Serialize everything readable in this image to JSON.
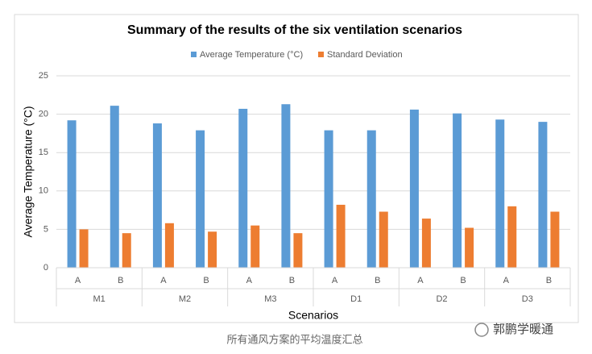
{
  "chart_data": {
    "type": "bar",
    "title": "Summary of the results of the six ventilation scenarios",
    "categories": [
      "A",
      "B",
      "A",
      "B",
      "A",
      "B",
      "A",
      "B",
      "A",
      "B",
      "A",
      "B"
    ],
    "groups": [
      "M1",
      "M2",
      "M3",
      "D1",
      "D2",
      "D3"
    ],
    "series": [
      {
        "name": "Average Temperature (°C)",
        "color": "#5b9bd5",
        "values": [
          19.2,
          21.1,
          18.8,
          17.9,
          20.7,
          21.3,
          17.9,
          17.9,
          20.6,
          20.1,
          19.3,
          19.0
        ]
      },
      {
        "name": "Standard Deviation",
        "color": "#ed7d31",
        "values": [
          5.0,
          4.5,
          5.8,
          4.7,
          5.5,
          4.5,
          8.2,
          7.3,
          6.4,
          5.2,
          8.0,
          7.3
        ]
      }
    ],
    "y_label": "Average Temperature (°C)",
    "x_label": "Scenarios",
    "ylim": [
      0,
      25
    ],
    "yticks": [
      0,
      5,
      10,
      15,
      20,
      25
    ],
    "grid": true,
    "legend": "top"
  },
  "caption": "所有通风方案的平均温度汇总",
  "watermark": "郭鹏学暖通"
}
